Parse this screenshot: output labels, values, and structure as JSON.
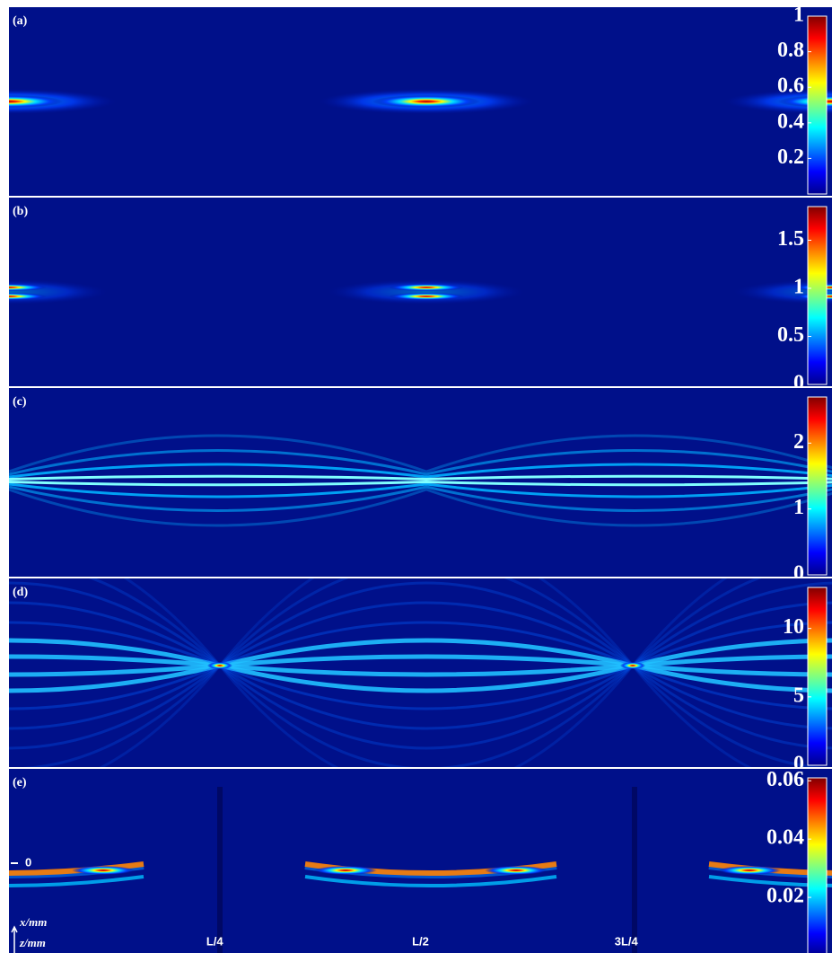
{
  "chart_data": [
    {
      "type": "heatmap",
      "label": "(a)",
      "clim": [
        0,
        1
      ],
      "cticks": [
        0.2,
        0.4,
        0.6,
        0.8,
        1
      ]
    },
    {
      "type": "heatmap",
      "label": "(b)",
      "clim": [
        0,
        1.85
      ],
      "cticks": [
        0,
        0.5,
        1,
        1.5
      ]
    },
    {
      "type": "heatmap",
      "label": "(c)",
      "clim": [
        0,
        2.7
      ],
      "cticks": [
        0,
        1,
        2
      ]
    },
    {
      "type": "heatmap",
      "label": "(d)",
      "clim": [
        0,
        13
      ],
      "cticks": [
        0,
        5,
        10
      ]
    },
    {
      "type": "heatmap",
      "label": "(e)",
      "clim": [
        0,
        0.061
      ],
      "cticks": [
        0.02,
        0.04,
        0.06
      ],
      "y_label": "x/mm",
      "x_label": "z/mm",
      "ylim": [
        -1,
        1
      ],
      "yticks": [
        0
      ],
      "xlim": [
        0,
        1
      ],
      "xticks": [
        {
          "value": 0.25,
          "label": "L/4"
        },
        {
          "value": 0.5,
          "label": "L/2"
        },
        {
          "value": 0.75,
          "label": "3L/4"
        }
      ]
    }
  ]
}
